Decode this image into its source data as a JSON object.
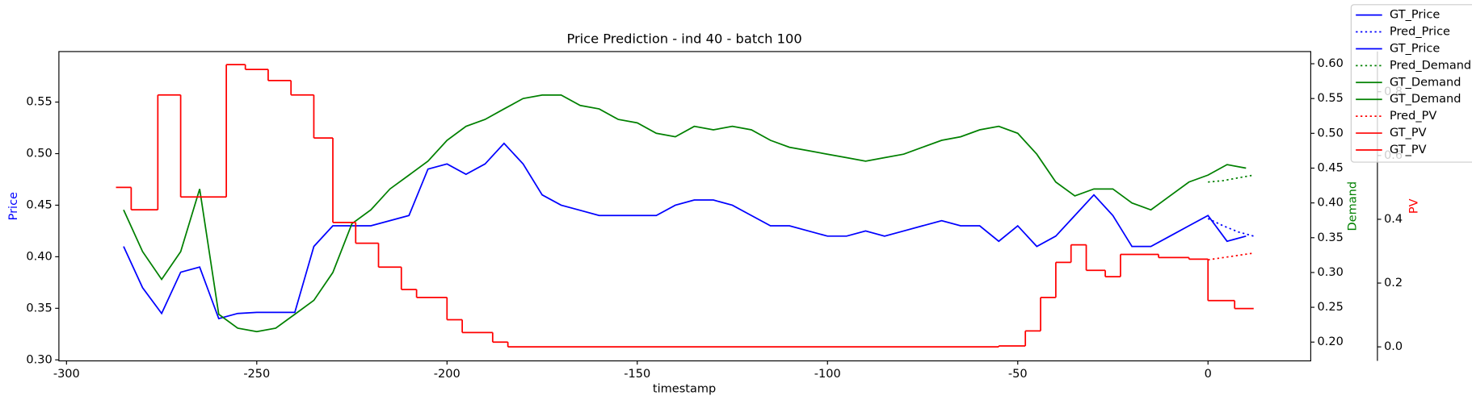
{
  "chart_data": {
    "type": "line",
    "title": "Price Prediction - ind 40 - batch 100",
    "x_label": "timestamp",
    "xlim": [
      -302,
      27
    ],
    "xticks": [
      -300,
      -250,
      -200,
      -150,
      -100,
      -50,
      0
    ],
    "axes": {
      "y": {
        "label": "Price",
        "color": "#0000ff",
        "ylim": [
          0.299,
          0.599
        ],
        "ticks": [
          {
            "value": 0.3,
            "label": "0.30"
          },
          {
            "value": 0.35,
            "label": "0.35"
          },
          {
            "value": 0.4,
            "label": "0.40"
          },
          {
            "value": 0.45,
            "label": "0.45"
          },
          {
            "value": 0.5,
            "label": "0.50"
          },
          {
            "value": 0.55,
            "label": "0.55"
          }
        ]
      },
      "y2": {
        "label": "Demand",
        "color": "#008000",
        "ylim": [
          0.173,
          0.6175
        ],
        "ticks": [
          {
            "value": 0.2,
            "label": "0.20"
          },
          {
            "value": 0.25,
            "label": "0.25"
          },
          {
            "value": 0.3,
            "label": "0.30"
          },
          {
            "value": 0.35,
            "label": "0.35"
          },
          {
            "value": 0.4,
            "label": "0.40"
          },
          {
            "value": 0.45,
            "label": "0.45"
          },
          {
            "value": 0.5,
            "label": "0.50"
          },
          {
            "value": 0.55,
            "label": "0.55"
          },
          {
            "value": 0.6,
            "label": "0.60"
          }
        ]
      },
      "y3": {
        "label": "PV",
        "color": "#ff0000",
        "ylim": [
          -0.044,
          0.926
        ],
        "ticks": [
          {
            "value": 0,
            "label": "0.0"
          },
          {
            "value": 0.2,
            "label": "0.2"
          },
          {
            "value": 0.4,
            "label": "0.4"
          },
          {
            "value": 0.6,
            "label": "0.6"
          },
          {
            "value": 0.8,
            "label": "0.8"
          }
        ]
      }
    },
    "series": [
      {
        "axis": "y",
        "color": "#0000ff",
        "style": "solid",
        "x": [
          -285,
          -280,
          -275,
          -270,
          -265,
          -260,
          -255,
          -250,
          -245,
          -240,
          -235,
          -230,
          -225,
          -220,
          -215,
          -210,
          -205,
          -200,
          -195,
          -190,
          -185,
          -180,
          -175,
          -170,
          -165,
          -160,
          -155,
          -150,
          -145,
          -140,
          -135,
          -130,
          -125,
          -120,
          -115,
          -110,
          -105,
          -100,
          -95,
          -90,
          -85,
          -80,
          -75,
          -70,
          -65,
          -60,
          -55,
          -50,
          -45,
          -40,
          -35,
          -30,
          -25,
          -20,
          -15,
          -10,
          -5,
          0,
          5,
          10
        ],
        "values": [
          0.41,
          0.37,
          0.345,
          0.385,
          0.39,
          0.34,
          0.345,
          0.346,
          0.346,
          0.346,
          0.41,
          0.43,
          0.43,
          0.43,
          0.435,
          0.44,
          0.485,
          0.49,
          0.48,
          0.49,
          0.51,
          0.49,
          0.46,
          0.45,
          0.445,
          0.44,
          0.44,
          0.44,
          0.44,
          0.45,
          0.455,
          0.455,
          0.45,
          0.44,
          0.43,
          0.43,
          0.425,
          0.42,
          0.42,
          0.425,
          0.42,
          0.425,
          0.43,
          0.435,
          0.43,
          0.43,
          0.415,
          0.43,
          0.41,
          0.42,
          0.44,
          0.46,
          0.44,
          0.41,
          0.41,
          0.42,
          0.43,
          0.44,
          0.415,
          0.42
        ]
      },
      {
        "axis": "y",
        "color": "#0000ff",
        "style": "dotted",
        "x": [
          0,
          4,
          8,
          12
        ],
        "values": [
          0.437,
          0.43,
          0.424,
          0.42
        ]
      },
      {
        "axis": "y2",
        "color": "#008000",
        "style": "solid",
        "x": [
          -285,
          -280,
          -275,
          -270,
          -265,
          -260,
          -255,
          -250,
          -245,
          -240,
          -235,
          -230,
          -225,
          -220,
          -215,
          -210,
          -205,
          -200,
          -195,
          -190,
          -185,
          -180,
          -175,
          -170,
          -165,
          -160,
          -155,
          -150,
          -145,
          -140,
          -135,
          -130,
          -125,
          -120,
          -115,
          -110,
          -105,
          -100,
          -95,
          -90,
          -85,
          -80,
          -75,
          -70,
          -65,
          -60,
          -55,
          -50,
          -45,
          -40,
          -35,
          -30,
          -25,
          -20,
          -15,
          -10,
          -5,
          0,
          5,
          10
        ],
        "values": [
          0.39,
          0.33,
          0.29,
          0.33,
          0.42,
          0.24,
          0.22,
          0.215,
          0.22,
          0.24,
          0.26,
          0.3,
          0.37,
          0.39,
          0.42,
          0.44,
          0.46,
          0.49,
          0.51,
          0.52,
          0.535,
          0.55,
          0.555,
          0.555,
          0.54,
          0.535,
          0.52,
          0.515,
          0.5,
          0.495,
          0.51,
          0.505,
          0.51,
          0.505,
          0.49,
          0.48,
          0.475,
          0.47,
          0.465,
          0.46,
          0.465,
          0.47,
          0.48,
          0.49,
          0.495,
          0.505,
          0.51,
          0.5,
          0.47,
          0.43,
          0.41,
          0.42,
          0.42,
          0.4,
          0.39,
          0.41,
          0.43,
          0.44,
          0.455,
          0.45
        ]
      },
      {
        "axis": "y2",
        "color": "#008000",
        "style": "dotted",
        "x": [
          0,
          4,
          8,
          12
        ],
        "values": [
          0.43,
          0.432,
          0.436,
          0.44
        ]
      },
      {
        "axis": "y3",
        "color": "#ff0000",
        "style": "steps",
        "x": [
          -287,
          -283,
          -276,
          -270,
          -258,
          -253,
          -247,
          -241,
          -235,
          -230,
          -224,
          -218,
          -212,
          -208,
          -200,
          -196,
          -188,
          -184,
          -55,
          -48,
          -44,
          -40,
          -36,
          -32,
          -27,
          -23,
          -13,
          -5,
          0,
          7,
          12
        ],
        "values": [
          0.5,
          0.43,
          0.79,
          0.47,
          0.885,
          0.87,
          0.835,
          0.79,
          0.655,
          0.39,
          0.325,
          0.25,
          0.18,
          0.155,
          0.085,
          0.045,
          0.015,
          0,
          0.003,
          0.05,
          0.155,
          0.265,
          0.32,
          0.24,
          0.22,
          0.29,
          0.28,
          0.275,
          0.145,
          0.12,
          0.12
        ]
      },
      {
        "axis": "y3",
        "color": "#ff0000",
        "style": "dotted",
        "x": [
          0,
          4,
          8,
          12
        ],
        "values": [
          0.273,
          0.28,
          0.287,
          0.294
        ]
      }
    ],
    "legend": [
      {
        "label": "GT_Price",
        "color": "#0000ff",
        "style": "solid"
      },
      {
        "label": "Pred_Price",
        "color": "#0000ff",
        "style": "dotted"
      },
      {
        "label": "GT_Price",
        "color": "#0000ff",
        "style": "solid"
      },
      {
        "label": "Pred_Demand",
        "color": "#008000",
        "style": "dotted"
      },
      {
        "label": "GT_Demand",
        "color": "#008000",
        "style": "solid"
      },
      {
        "label": "GT_Demand",
        "color": "#008000",
        "style": "solid"
      },
      {
        "label": "Pred_PV",
        "color": "#ff0000",
        "style": "dotted"
      },
      {
        "label": "GT_PV",
        "color": "#ff0000",
        "style": "solid"
      },
      {
        "label": "GT_PV",
        "color": "#ff0000",
        "style": "solid"
      }
    ],
    "legend_position": "upper right"
  }
}
